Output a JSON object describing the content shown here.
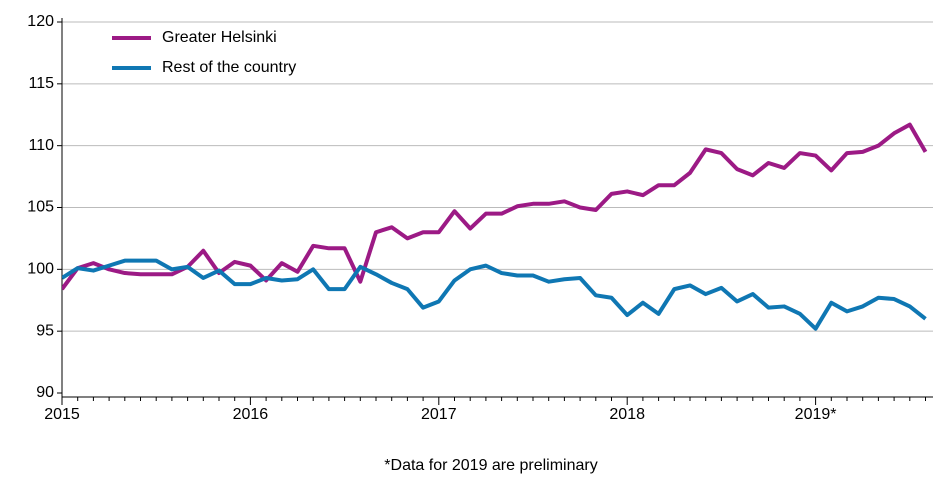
{
  "chart_data": {
    "type": "line",
    "categories": [
      "2015",
      null,
      null,
      null,
      null,
      null,
      null,
      null,
      null,
      null,
      null,
      null,
      "2016",
      null,
      null,
      null,
      null,
      null,
      null,
      null,
      null,
      null,
      null,
      null,
      "2017",
      null,
      null,
      null,
      null,
      null,
      null,
      null,
      null,
      null,
      null,
      null,
      "2018",
      null,
      null,
      null,
      null,
      null,
      null,
      null,
      null,
      null,
      null,
      null,
      "2019*",
      null,
      null,
      null,
      null,
      null,
      null,
      null
    ],
    "series": [
      {
        "name": "Greater Helsinki",
        "color": "#9c1a85",
        "values": [
          98.4,
          100.1,
          100.5,
          100.0,
          99.7,
          99.6,
          99.6,
          99.6,
          100.2,
          101.5,
          99.7,
          100.6,
          100.3,
          99.1,
          100.5,
          99.8,
          101.9,
          101.7,
          101.7,
          99.0,
          103.0,
          103.4,
          102.5,
          103.0,
          103.0,
          104.7,
          103.3,
          104.5,
          104.5,
          105.1,
          105.3,
          105.3,
          105.5,
          105.0,
          104.8,
          106.1,
          106.3,
          106.0,
          106.8,
          106.8,
          107.8,
          109.7,
          109.4,
          108.1,
          107.6,
          108.6,
          108.2,
          109.4,
          109.2,
          108.0,
          109.4,
          109.5,
          110.0,
          111.0,
          111.7,
          109.5
        ]
      },
      {
        "name": "Rest of the country",
        "color": "#0f77b3",
        "values": [
          99.3,
          100.1,
          99.9,
          100.3,
          100.7,
          100.7,
          100.7,
          100.0,
          100.2,
          99.3,
          99.9,
          98.8,
          98.8,
          99.3,
          99.1,
          99.2,
          100.0,
          98.4,
          98.4,
          100.2,
          99.6,
          98.9,
          98.4,
          96.9,
          97.4,
          99.1,
          100.0,
          100.3,
          99.7,
          99.5,
          99.5,
          99.0,
          99.2,
          99.3,
          97.9,
          97.7,
          96.3,
          97.3,
          96.4,
          98.4,
          98.7,
          98.0,
          98.5,
          97.4,
          98.0,
          96.9,
          97.0,
          96.4,
          95.2,
          97.3,
          96.6,
          97.0,
          97.7,
          97.6,
          97.0,
          96.0
        ]
      }
    ],
    "ylim": [
      90,
      120
    ],
    "yticks": [
      90,
      95,
      100,
      105,
      110,
      115,
      120
    ],
    "grid": true,
    "note": "*Data for 2019 are preliminary"
  }
}
